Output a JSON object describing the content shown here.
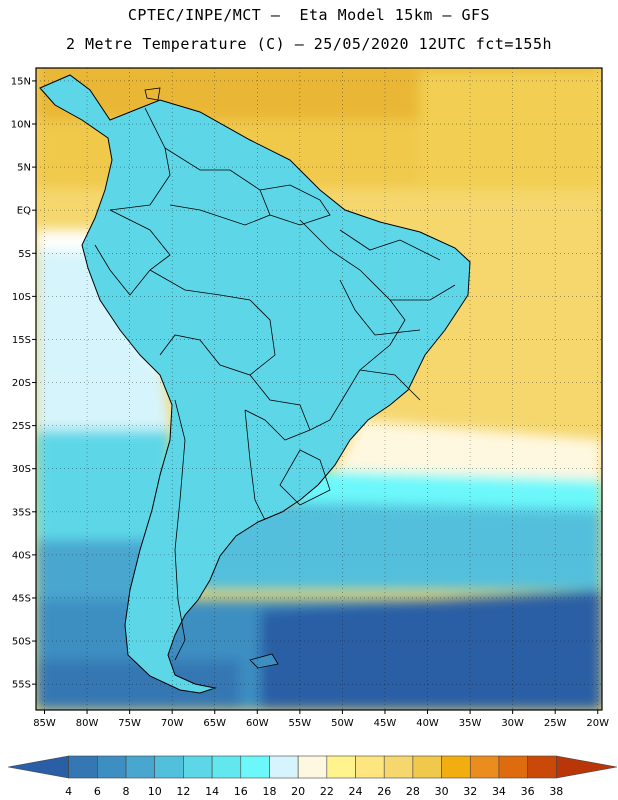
{
  "header": {
    "line1": "CPTEC/INPE/MCT –  Eta Model 15km – GFS",
    "line2": "2 Metre Temperature (C) – 25/05/2020 12UTC fct=155h"
  },
  "map": {
    "lat_labels": [
      "15N",
      "10N",
      "5N",
      "EQ",
      "5S",
      "10S",
      "15S",
      "20S",
      "25S",
      "30S",
      "35S",
      "40S",
      "45S",
      "50S",
      "55S"
    ],
    "lon_labels": [
      "85W",
      "80W",
      "75W",
      "70W",
      "65W",
      "60W",
      "55W",
      "50W",
      "45W",
      "40W",
      "35W",
      "30W",
      "25W",
      "20W"
    ],
    "lat_range": [
      -58,
      16.5
    ],
    "lon_range": [
      -86,
      -19.5
    ]
  },
  "colorbar": {
    "ticks": [
      "4",
      "6",
      "8",
      "10",
      "12",
      "14",
      "16",
      "18",
      "20",
      "22",
      "24",
      "26",
      "28",
      "30",
      "32",
      "34",
      "36",
      "38"
    ],
    "colors": [
      "#2a5fa5",
      "#3477b3",
      "#3d8fc2",
      "#48a6cf",
      "#52bfdc",
      "#5dd7e8",
      "#63e7ee",
      "#6cf8fb",
      "#d6f4fb",
      "#fff8e0",
      "#fef38d",
      "#fde67f",
      "#f5d76e",
      "#f0c94c",
      "#f2ae10",
      "#ea8c1e",
      "#de6c0e",
      "#c94a08",
      "#b83608"
    ]
  }
}
